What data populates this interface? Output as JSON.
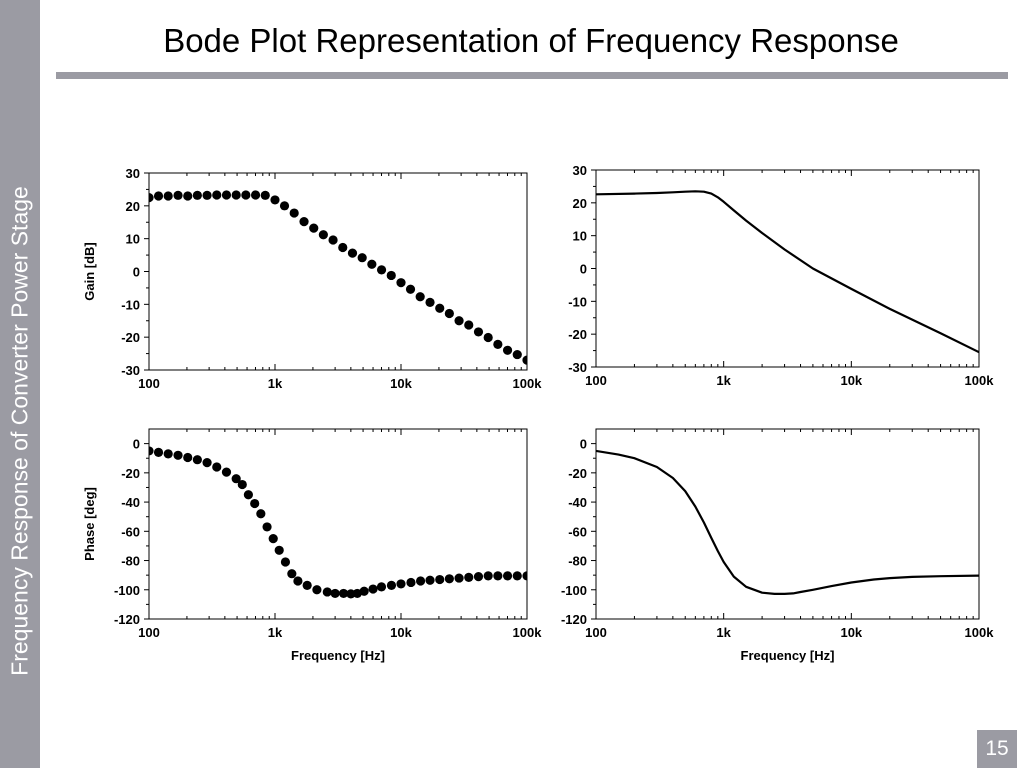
{
  "slide": {
    "title": "Bode Plot Representation of Frequency Response",
    "side_title": "Frequency Response of Converter Power Stage",
    "page_number": "15"
  },
  "colors": {
    "band": "#9b9ba3",
    "marker": "#000000"
  },
  "chart_data": [
    {
      "id": "gain-measured",
      "type": "scatter",
      "xscale": "log",
      "xlim": [
        100,
        100000
      ],
      "ylim": [
        -30,
        30
      ],
      "xticks": [
        "100",
        "1k",
        "10k",
        "100k"
      ],
      "yticks": [
        "30",
        "20",
        "10",
        "0",
        "-10",
        "-20",
        "-30"
      ],
      "xlabel": "",
      "ylabel": "Gain [dB]",
      "x": [
        100,
        119,
        142,
        170,
        203,
        242,
        289,
        345,
        412,
        492,
        587,
        701,
        837,
        1000,
        1190,
        1420,
        1700,
        2030,
        2420,
        2890,
        3450,
        4120,
        4920,
        5870,
        7010,
        8370,
        10000,
        11900,
        14200,
        17000,
        20300,
        24200,
        28900,
        34500,
        41200,
        49200,
        58700,
        70100,
        83700,
        100000
      ],
      "y": [
        22.5,
        23,
        23,
        23.2,
        23,
        23.2,
        23.2,
        23.3,
        23.3,
        23.3,
        23.3,
        23.3,
        23.2,
        21.8,
        20,
        17.8,
        15.2,
        13.2,
        11.2,
        9.6,
        7.3,
        5.6,
        4.2,
        2.2,
        0.5,
        -1.2,
        -3.4,
        -5.4,
        -7.7,
        -9.4,
        -11.2,
        -12.8,
        -15,
        -16.3,
        -18.4,
        -20.1,
        -22.2,
        -24,
        -25.3,
        -27
      ]
    },
    {
      "id": "gain-theory",
      "type": "line",
      "xscale": "log",
      "xlim": [
        100,
        100000
      ],
      "ylim": [
        -30,
        30
      ],
      "xticks": [
        "100",
        "1k",
        "10k",
        "100k"
      ],
      "yticks": [
        "30",
        "20",
        "10",
        "0",
        "-10",
        "-20",
        "-30"
      ],
      "xlabel": "",
      "ylabel": "",
      "x": [
        100,
        200,
        300,
        400,
        500,
        600,
        700,
        800,
        900,
        1000,
        1200,
        1500,
        2000,
        3000,
        5000,
        10000,
        20000,
        50000,
        100000
      ],
      "y": [
        22.6,
        22.8,
        23,
        23.2,
        23.4,
        23.5,
        23.4,
        22.8,
        21.7,
        20.3,
        17.7,
        14.6,
        10.8,
        5.8,
        0,
        -6.2,
        -12.3,
        -19.7,
        -25.5
      ]
    },
    {
      "id": "phase-measured",
      "type": "scatter",
      "xscale": "log",
      "xlim": [
        100,
        100000
      ],
      "ylim": [
        -120,
        10
      ],
      "xticks": [
        "100",
        "1k",
        "10k",
        "100k"
      ],
      "yticks": [
        "0",
        "-20",
        "-40",
        "-60",
        "-80",
        "-100",
        "-120"
      ],
      "xlabel": "Frequency [Hz]",
      "ylabel": "Phase [deg]",
      "x": [
        100,
        119,
        142,
        170,
        203,
        242,
        289,
        345,
        412,
        492,
        550,
        615,
        690,
        772,
        865,
        968,
        1080,
        1210,
        1360,
        1520,
        1800,
        2150,
        2600,
        3000,
        3500,
        4000,
        4500,
        5100,
        6000,
        7000,
        8400,
        10000,
        12000,
        14300,
        17000,
        20300,
        24200,
        28900,
        34500,
        41200,
        49200,
        58700,
        70100,
        83700,
        100000
      ],
      "y": [
        -5,
        -6,
        -7,
        -8,
        -9.5,
        -11,
        -13,
        -16,
        -19.5,
        -24,
        -28,
        -35,
        -41,
        -48,
        -57,
        -65,
        -73,
        -81,
        -89,
        -94,
        -97,
        -100,
        -101.5,
        -102.5,
        -102.5,
        -102.8,
        -102.5,
        -101,
        -99.5,
        -98,
        -97,
        -96,
        -95,
        -94,
        -93.5,
        -93,
        -92.5,
        -92,
        -91.5,
        -91,
        -90.5,
        -90.5,
        -90.5,
        -90.5,
        -90.5
      ]
    },
    {
      "id": "phase-theory",
      "type": "line",
      "xscale": "log",
      "xlim": [
        100,
        100000
      ],
      "ylim": [
        -120,
        10
      ],
      "xticks": [
        "100",
        "1k",
        "10k",
        "100k"
      ],
      "yticks": [
        "0",
        "-20",
        "-40",
        "-60",
        "-80",
        "-100",
        "-120"
      ],
      "xlabel": "Frequency [Hz]",
      "ylabel": "",
      "x": [
        100,
        150,
        200,
        300,
        400,
        500,
        600,
        700,
        800,
        900,
        1000,
        1200,
        1500,
        2000,
        2500,
        3000,
        3500,
        4000,
        5000,
        7000,
        10000,
        15000,
        20000,
        30000,
        50000,
        100000
      ],
      "y": [
        -5,
        -7.5,
        -10,
        -16,
        -23.5,
        -32.5,
        -43,
        -54,
        -64.5,
        -73.5,
        -81,
        -91,
        -98,
        -102,
        -102.8,
        -102.8,
        -102.5,
        -101.5,
        -100,
        -97.5,
        -95,
        -93,
        -92,
        -91.2,
        -90.7,
        -90.3
      ]
    }
  ]
}
